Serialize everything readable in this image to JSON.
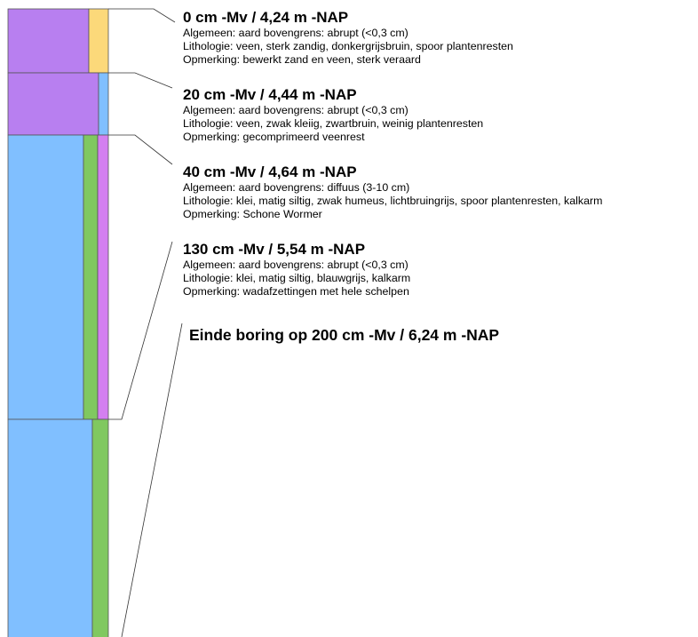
{
  "layers": [
    {
      "id": "layer-0",
      "title": "0 cm -Mv / 4,24 m -NAP",
      "algemeen": "Algemeen: aard bovengrens: abrupt (<0,3 cm)",
      "lithologie": "Lithologie: veen, sterk zandig, donkergrijsbruin, spoor plantenresten",
      "opmerking": "Opmerking: bewerkt zand en veen, sterk veraard"
    },
    {
      "id": "layer-20",
      "title": "20 cm -Mv / 4,44 m -NAP",
      "algemeen": "Algemeen: aard bovengrens: abrupt (<0,3 cm)",
      "lithologie": "Lithologie: veen, zwak kleiig, zwartbruin, weinig plantenresten",
      "opmerking": "Opmerking: gecomprimeerd veenrest"
    },
    {
      "id": "layer-40",
      "title": "40 cm -Mv / 4,64 m -NAP",
      "algemeen": "Algemeen: aard bovengrens: diffuus (3-10 cm)",
      "lithologie": "Lithologie: klei, matig siltig, zwak humeus, lichtbruingrijs, spoor plantenresten, kalkarm",
      "opmerking": "Opmerking: Schone Wormer"
    },
    {
      "id": "layer-130",
      "title": "130 cm -Mv / 5,54 m -NAP",
      "algemeen": "Algemeen: aard bovengrens: abrupt (<0,3 cm)",
      "lithologie": "Lithologie: klei, matig siltig, blauwgrijs, kalkarm",
      "opmerking": "Opmerking: wadafzettingen met hele schelpen"
    }
  ],
  "end_label": "Einde boring op 200 cm -Mv / 6,24 m -NAP",
  "colors": {
    "veen": "#b87ff0",
    "zand": "#fcd97a",
    "klei": "#80bfff",
    "green": "#80c860",
    "pink": "#d37ff0",
    "outline": "#555555",
    "leader": "#333333"
  }
}
